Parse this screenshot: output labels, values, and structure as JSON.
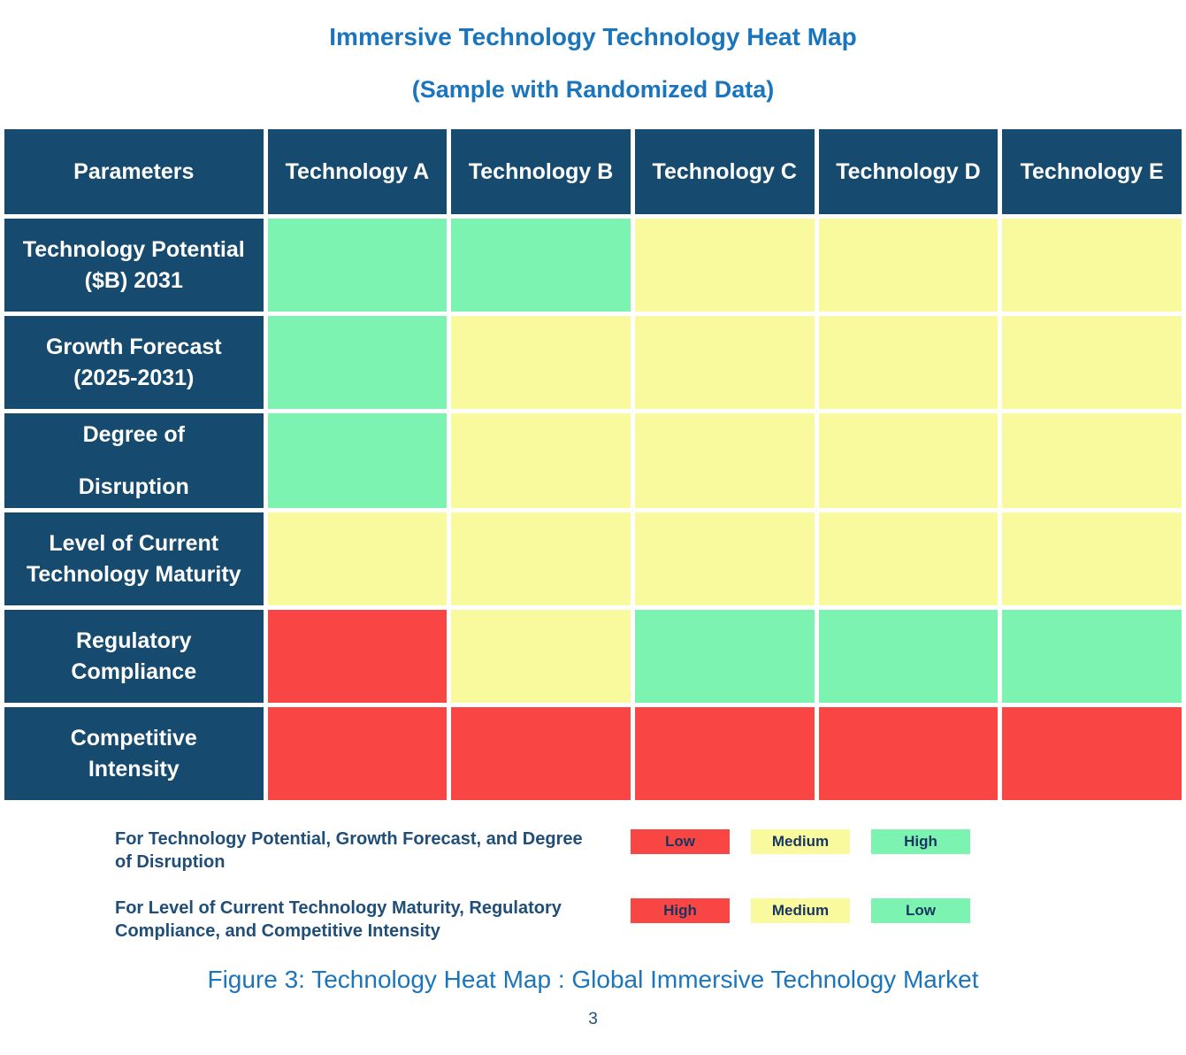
{
  "title": "Immersive Technology Technology Heat Map",
  "subtitle": "(Sample with Randomized Data)",
  "caption": "Figure 3: Technology Heat Map : Global Immersive Technology Market",
  "page_number": "3",
  "colors": {
    "navy": "#164A6E",
    "blue": "#1B75BC",
    "legend_text": "#1F4E79",
    "chip_text": "#17365D"
  },
  "chart_data": {
    "type": "heatmap",
    "title": "Immersive Technology Technology Heat Map",
    "subtitle": "(Sample with Randomized Data)",
    "columns": [
      "Parameters",
      "Technology A",
      "Technology B",
      "Technology C",
      "Technology D",
      "Technology E"
    ],
    "palette": {
      "red": "#FA4545",
      "yellow": "#F9F99E",
      "green": "#7DF3B2"
    },
    "rows": [
      {
        "label": "Technology Potential ($B) 2031",
        "label_lines": [
          "Technology Potential",
          "($B) 2031"
        ],
        "cells": [
          "green",
          "green",
          "yellow",
          "yellow",
          "yellow"
        ],
        "ratings": [
          "High",
          "High",
          "Medium",
          "Medium",
          "Medium"
        ]
      },
      {
        "label": "Growth Forecast (2025-2031)",
        "label_lines": [
          "Growth Forecast",
          "(2025-2031)"
        ],
        "cells": [
          "green",
          "yellow",
          "yellow",
          "yellow",
          "yellow"
        ],
        "ratings": [
          "High",
          "Medium",
          "Medium",
          "Medium",
          "Medium"
        ]
      },
      {
        "label": "Degree of Disruption",
        "label_lines": [
          "Degree of",
          "Disruption"
        ],
        "spread": true,
        "cells": [
          "green",
          "yellow",
          "yellow",
          "yellow",
          "yellow"
        ],
        "ratings": [
          "High",
          "Medium",
          "Medium",
          "Medium",
          "Medium"
        ]
      },
      {
        "label": "Level of Current Technology Maturity",
        "label_lines": [
          "Level of Current",
          "Technology Maturity"
        ],
        "cells": [
          "yellow",
          "yellow",
          "yellow",
          "yellow",
          "yellow"
        ],
        "ratings": [
          "Medium",
          "Medium",
          "Medium",
          "Medium",
          "Medium"
        ]
      },
      {
        "label": "Regulatory Compliance",
        "label_lines": [
          "Regulatory",
          "Compliance"
        ],
        "cells": [
          "red",
          "yellow",
          "green",
          "green",
          "green"
        ],
        "ratings": [
          "High",
          "Medium",
          "Low",
          "Low",
          "Low"
        ]
      },
      {
        "label": "Competitive Intensity",
        "label_lines": [
          "Competitive",
          "Intensity"
        ],
        "cells": [
          "red",
          "red",
          "red",
          "red",
          "red"
        ],
        "ratings": [
          "High",
          "High",
          "High",
          "High",
          "High"
        ]
      }
    ]
  },
  "legend": {
    "rows": [
      {
        "label": "For Technology Potential, Growth Forecast, and Degree of Disruption",
        "items": [
          {
            "text": "Low",
            "color": "red"
          },
          {
            "text": "Medium",
            "color": "yellow"
          },
          {
            "text": "High",
            "color": "green"
          }
        ]
      },
      {
        "label": "For Level of Current Technology Maturity, Regulatory Compliance, and Competitive Intensity",
        "items": [
          {
            "text": "High",
            "color": "red"
          },
          {
            "text": "Medium",
            "color": "yellow"
          },
          {
            "text": "Low",
            "color": "green"
          }
        ]
      }
    ]
  }
}
